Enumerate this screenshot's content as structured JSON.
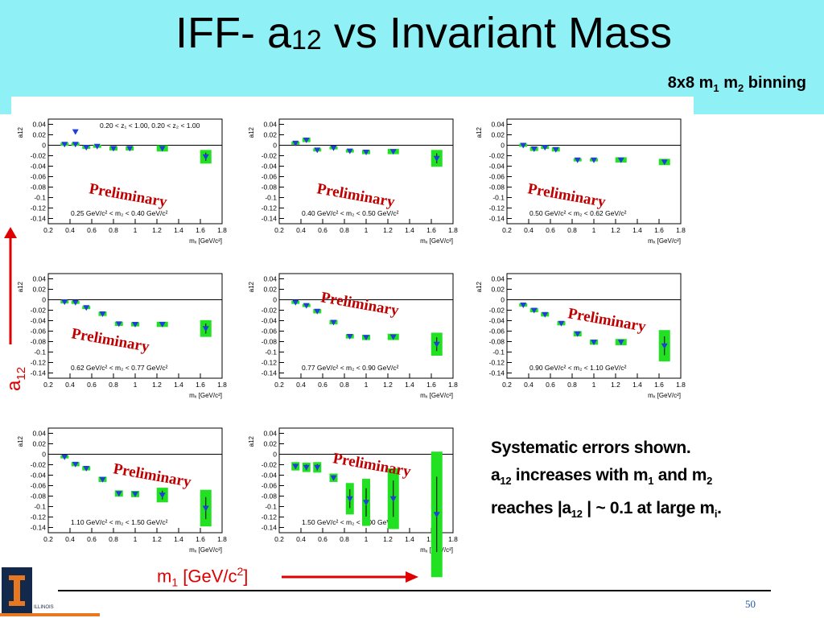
{
  "slide": {
    "title_main": "IFF- a",
    "title_sub": "12",
    "title_tail": " vs Invariant Mass",
    "binning_pre": "8x8 m",
    "binning_s1": "1",
    "binning_mid": " m",
    "binning_s2": "2",
    "binning_tail": " binning",
    "ylabel_main": "a",
    "ylabel_sub": "12",
    "xlabel_main": "m",
    "xlabel_sub": "1",
    "xlabel_mid": " [GeV/c",
    "xlabel_sup": "2",
    "xlabel_tail": "]",
    "notes": {
      "line1": "Systematic errors shown.",
      "line2_a": "a",
      "line2_sub": "12",
      "line2_b": " increases with m",
      "line2_sub2": "1",
      "line2_c": " and m",
      "line2_sub3": "2",
      "line3_a": "reaches |a",
      "line3_sub": "12",
      "line3_b": " | ~ 0.1 at large m",
      "line3_sub2": "i",
      "line3_c": "."
    },
    "page_number": "50",
    "logo_text": "ILLINOIS"
  },
  "colors": {
    "marker": "#1f3fd6",
    "syst_band": "#22e022",
    "prelim": "#c00000",
    "arrow": "#e00000",
    "header": "#8ff0f5"
  },
  "chart_data": [
    {
      "type": "scatter",
      "ylabel": "a12",
      "xlabel": "mₓ [GeV/c²]",
      "cut_text": "0.20 < z₁ < 1.00, 0.20 < z₂ < 1.00",
      "range_text": "0.25 GeV/c² < m₂ < 0.40 GeV/c²",
      "preliminary": "Preliminary",
      "xlim": [
        0.2,
        1.8
      ],
      "ylim": [
        -0.15,
        0.05
      ],
      "x": [
        0.35,
        0.45,
        0.55,
        0.65,
        0.8,
        0.95,
        1.25,
        1.65
      ],
      "y": [
        0.002,
        0.002,
        -0.004,
        -0.002,
        -0.006,
        -0.006,
        -0.006,
        -0.022
      ],
      "syst": [
        0.003,
        0.003,
        0.003,
        0.003,
        0.004,
        0.004,
        0.006,
        0.013
      ],
      "extra_points": [
        {
          "x": 0.45,
          "y": 0.026
        }
      ]
    },
    {
      "type": "scatter",
      "ylabel": "a12",
      "xlabel": "mₓ [GeV/c²]",
      "range_text": "0.40 GeV/c² < m₂ < 0.50 GeV/c²",
      "preliminary": "Preliminary",
      "xlim": [
        0.2,
        1.8
      ],
      "ylim": [
        -0.15,
        0.05
      ],
      "x": [
        0.35,
        0.45,
        0.55,
        0.7,
        0.85,
        1.0,
        1.25,
        1.65
      ],
      "y": [
        0.004,
        0.01,
        -0.009,
        -0.005,
        -0.011,
        -0.013,
        -0.012,
        -0.025
      ],
      "syst": [
        0.003,
        0.004,
        0.003,
        0.003,
        0.003,
        0.004,
        0.005,
        0.016
      ]
    },
    {
      "type": "scatter",
      "ylabel": "a12",
      "xlabel": "mₓ [GeV/c²]",
      "range_text": "0.50 GeV/c² < m₂ < 0.62 GeV/c²",
      "preliminary": "Preliminary",
      "xlim": [
        0.2,
        1.8
      ],
      "ylim": [
        -0.15,
        0.05
      ],
      "x": [
        0.35,
        0.45,
        0.55,
        0.65,
        0.85,
        1.0,
        1.25,
        1.65
      ],
      "y": [
        0.0,
        -0.007,
        -0.004,
        -0.008,
        -0.028,
        -0.028,
        -0.028,
        -0.032
      ],
      "syst": [
        0.003,
        0.004,
        0.003,
        0.004,
        0.003,
        0.003,
        0.005,
        0.006
      ]
    },
    {
      "type": "scatter",
      "ylabel": "a12",
      "xlabel": "mₓ [GeV/c²]",
      "range_text": "0.62 GeV/c² < m₂ < 0.77 GeV/c²",
      "preliminary": "Preliminary",
      "xlim": [
        0.2,
        1.8
      ],
      "ylim": [
        -0.15,
        0.05
      ],
      "x": [
        0.35,
        0.45,
        0.55,
        0.7,
        0.85,
        1.0,
        1.25,
        1.65
      ],
      "y": [
        -0.004,
        -0.005,
        -0.015,
        -0.027,
        -0.046,
        -0.047,
        -0.047,
        -0.055
      ],
      "syst": [
        0.003,
        0.003,
        0.003,
        0.004,
        0.004,
        0.004,
        0.005,
        0.016
      ]
    },
    {
      "type": "scatter",
      "ylabel": "a12",
      "xlabel": "mₓ [GeV/c²]",
      "range_text": "0.77 GeV/c² < m₂ < 0.90 GeV/c²",
      "preliminary": "Preliminary",
      "xlim": [
        0.2,
        1.8
      ],
      "ylim": [
        -0.15,
        0.05
      ],
      "x": [
        0.35,
        0.45,
        0.55,
        0.7,
        0.85,
        1.0,
        1.25,
        1.65
      ],
      "y": [
        -0.005,
        -0.011,
        -0.022,
        -0.043,
        -0.07,
        -0.072,
        -0.071,
        -0.085
      ],
      "syst": [
        0.003,
        0.003,
        0.004,
        0.004,
        0.004,
        0.005,
        0.006,
        0.022
      ]
    },
    {
      "type": "scatter",
      "ylabel": "a12",
      "xlabel": "mₓ [GeV/c²]",
      "range_text": "0.90 GeV/c² < m₂ < 1.10 GeV/c²",
      "preliminary": "Preliminary",
      "xlim": [
        0.2,
        1.8
      ],
      "ylim": [
        -0.15,
        0.05
      ],
      "x": [
        0.35,
        0.45,
        0.55,
        0.7,
        0.85,
        1.0,
        1.25,
        1.65
      ],
      "y": [
        -0.01,
        -0.02,
        -0.028,
        -0.045,
        -0.065,
        -0.081,
        -0.081,
        -0.088
      ],
      "syst": [
        0.003,
        0.004,
        0.004,
        0.004,
        0.005,
        0.005,
        0.006,
        0.03
      ]
    },
    {
      "type": "scatter",
      "ylabel": "a12",
      "xlabel": "mₓ [GeV/c²]",
      "range_text": "1.10 GeV/c² < m₂ < 1.50 GeV/c²",
      "preliminary": "Preliminary",
      "xlim": [
        0.2,
        1.8
      ],
      "ylim": [
        -0.15,
        0.05
      ],
      "x": [
        0.35,
        0.45,
        0.55,
        0.7,
        0.85,
        1.0,
        1.25,
        1.65
      ],
      "y": [
        -0.005,
        -0.019,
        -0.027,
        -0.048,
        -0.075,
        -0.076,
        -0.078,
        -0.103
      ],
      "syst": [
        0.003,
        0.004,
        0.004,
        0.005,
        0.006,
        0.006,
        0.014,
        0.035
      ]
    },
    {
      "type": "scatter",
      "ylabel": "a12",
      "xlabel": "mₓ [GeV/c²]",
      "range_text": "1.50 GeV/c² < m₂ < 2.00 GeV/c²",
      "preliminary": "Preliminary",
      "xlim": [
        0.2,
        1.8
      ],
      "ylim": [
        -0.15,
        0.05
      ],
      "x": [
        0.35,
        0.45,
        0.55,
        0.7,
        0.85,
        1.0,
        1.25,
        1.65
      ],
      "y": [
        -0.023,
        -0.025,
        -0.025,
        -0.045,
        -0.085,
        -0.092,
        -0.085,
        -0.115
      ],
      "syst": [
        0.008,
        0.009,
        0.01,
        0.008,
        0.03,
        0.045,
        0.058,
        0.12
      ]
    }
  ]
}
